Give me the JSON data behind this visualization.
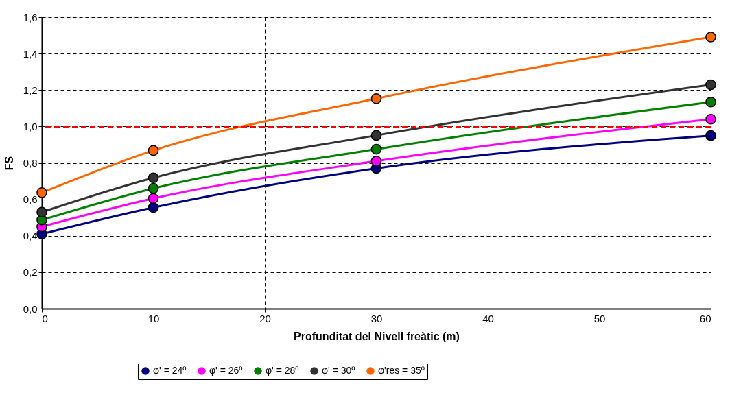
{
  "chart_data": {
    "type": "line",
    "xlabel": "Profunditat del Nivell freàtic (m)",
    "ylabel": "FS",
    "xlim": [
      0,
      60
    ],
    "xticks": [
      0,
      10,
      20,
      30,
      40,
      50,
      60
    ],
    "ylim": [
      0,
      1.6
    ],
    "yticks": [
      {
        "value": 0,
        "label": "0,0"
      },
      {
        "value": 0.2,
        "label": "0,2"
      },
      {
        "value": 0.4,
        "label": "0,4"
      },
      {
        "value": 0.6,
        "label": "0,6"
      },
      {
        "value": 0.8,
        "label": "0,8"
      },
      {
        "value": 1.0,
        "label": "1,0"
      },
      {
        "value": 1.2,
        "label": "1,2"
      },
      {
        "value": 1.4,
        "label": "1,4"
      },
      {
        "value": 1.6,
        "label": "1,6"
      }
    ],
    "x": [
      0,
      10,
      30,
      60
    ],
    "series": [
      {
        "name": "φ' = 24º",
        "color": "#000080",
        "values": [
          0.41,
          0.555,
          0.77,
          0.95
        ]
      },
      {
        "name": "φ' = 26º",
        "color": "#ff00ff",
        "values": [
          0.45,
          0.605,
          0.81,
          1.04
        ]
      },
      {
        "name": "φ' = 28º",
        "color": "#008000",
        "values": [
          0.487,
          0.66,
          0.875,
          1.134
        ]
      },
      {
        "name": "φ' = 30º",
        "color": "#333333",
        "values": [
          0.53,
          0.718,
          0.951,
          1.229
        ]
      },
      {
        "name": "φ'res = 35º",
        "color": "#ff6600",
        "values": [
          0.637,
          0.868,
          1.153,
          1.491
        ]
      }
    ],
    "ref_lines": [
      {
        "axis": "y",
        "value": 1.0,
        "color": "#ff0000",
        "line_style": "dashed"
      }
    ],
    "grid": true,
    "legend": "bottom",
    "marker": "circle",
    "line_style": "solid"
  }
}
